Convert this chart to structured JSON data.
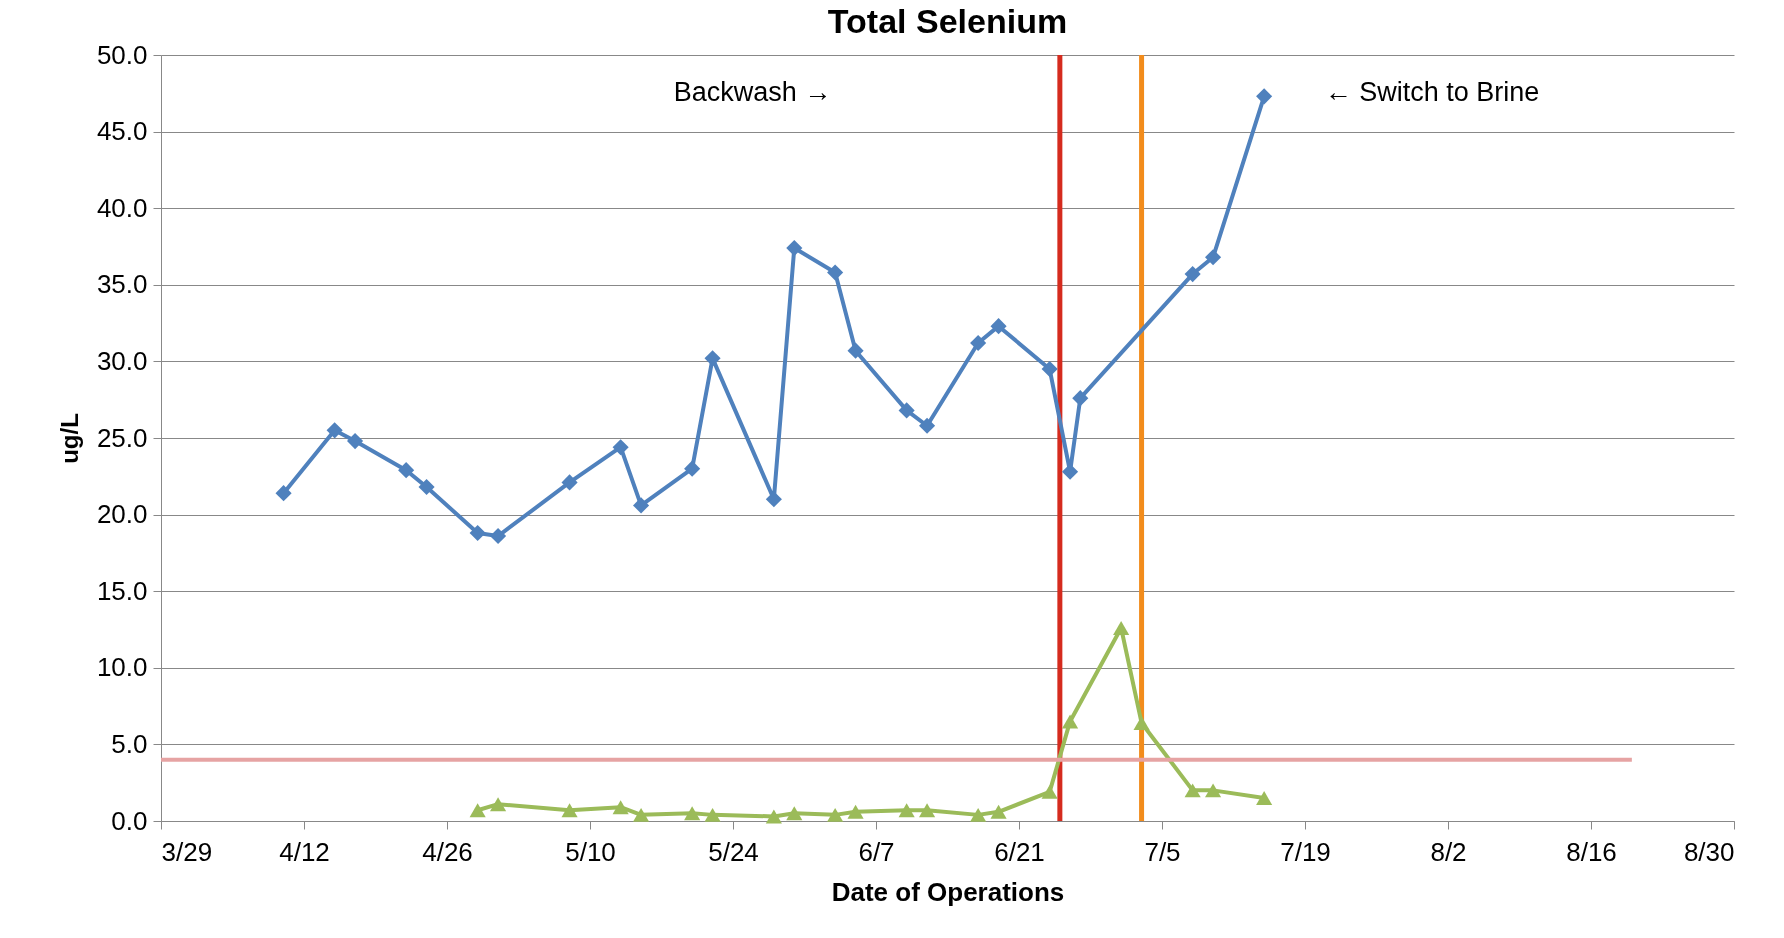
{
  "chart_data": {
    "type": "line",
    "title": "Total Selenium",
    "xlabel": "Date of Operations",
    "ylabel": "ug/L",
    "xlim": [
      "--03-29",
      "--08-30"
    ],
    "xticks": [
      {
        "value": "--03-29",
        "label": "3/29"
      },
      {
        "value": "--04-12",
        "label": "4/12"
      },
      {
        "value": "--04-26",
        "label": "4/26"
      },
      {
        "value": "--05-10",
        "label": "5/10"
      },
      {
        "value": "--05-24",
        "label": "5/24"
      },
      {
        "value": "--06-07",
        "label": "6/7"
      },
      {
        "value": "--06-21",
        "label": "6/21"
      },
      {
        "value": "--07-05",
        "label": "7/5"
      },
      {
        "value": "--07-19",
        "label": "7/19"
      },
      {
        "value": "--08-02",
        "label": "8/2"
      },
      {
        "value": "--08-16",
        "label": "8/16"
      },
      {
        "value": "--08-30",
        "label": "8/30"
      }
    ],
    "ylim": [
      0,
      50
    ],
    "yticks": [
      {
        "value": 0,
        "label": "0.0"
      },
      {
        "value": 5,
        "label": "5.0"
      },
      {
        "value": 10,
        "label": "10.0"
      },
      {
        "value": 15,
        "label": "15.0"
      },
      {
        "value": 20,
        "label": "20.0"
      },
      {
        "value": 25,
        "label": "25.0"
      },
      {
        "value": 30,
        "label": "30.0"
      },
      {
        "value": 35,
        "label": "35.0"
      },
      {
        "value": 40,
        "label": "40.0"
      },
      {
        "value": 45,
        "label": "45.0"
      },
      {
        "value": 50,
        "label": "50.0"
      }
    ],
    "grid": "y",
    "series": [
      {
        "color": "#4f81bd",
        "marker": "diamond",
        "x": [
          "--04-10",
          "--04-15",
          "--04-17",
          "--04-22",
          "--04-24",
          "--04-29",
          "--05-01",
          "--05-08",
          "--05-13",
          "--05-15",
          "--05-20",
          "--05-22",
          "--05-28",
          "--05-30",
          "--06-03",
          "--06-05",
          "--06-10",
          "--06-12",
          "--06-17",
          "--06-19",
          "--06-24",
          "--06-26",
          "--06-27",
          "--07-08",
          "--07-10",
          "--07-15"
        ],
        "values": [
          21.4,
          25.5,
          24.8,
          22.9,
          21.8,
          18.8,
          18.6,
          22.1,
          24.4,
          20.6,
          23.0,
          30.2,
          21.0,
          37.4,
          35.8,
          30.7,
          26.8,
          25.8,
          31.2,
          32.3,
          29.5,
          22.8,
          27.6,
          35.7,
          36.8,
          47.3
        ]
      },
      {
        "color": "#9bbb59",
        "marker": "triangle",
        "x": [
          "--04-29",
          "--05-01",
          "--05-08",
          "--05-13",
          "--05-15",
          "--05-20",
          "--05-22",
          "--05-28",
          "--05-30",
          "--06-03",
          "--06-05",
          "--06-10",
          "--06-12",
          "--06-17",
          "--06-19",
          "--06-24",
          "--06-26",
          "--07-01",
          "--07-03",
          "--07-08",
          "--07-10",
          "--07-15"
        ],
        "values": [
          0.7,
          1.1,
          0.7,
          0.9,
          0.4,
          0.5,
          0.4,
          0.3,
          0.5,
          0.4,
          0.6,
          0.7,
          0.7,
          0.4,
          0.6,
          1.9,
          6.5,
          12.6,
          6.4,
          2.0,
          2.0,
          1.5
        ]
      },
      {
        "color": "#e6a3a3",
        "marker": "none",
        "x": [
          "--03-29",
          "--08-20"
        ],
        "values": [
          4.0,
          4.0
        ]
      }
    ],
    "ref_lines": [
      {
        "axis": "x",
        "value": "--06-25",
        "color": "#d52b1e"
      },
      {
        "axis": "x",
        "value": "--07-03",
        "color": "#f28c1c"
      }
    ],
    "annotations": [
      "Backwash →",
      "← Switch to Brine"
    ]
  }
}
